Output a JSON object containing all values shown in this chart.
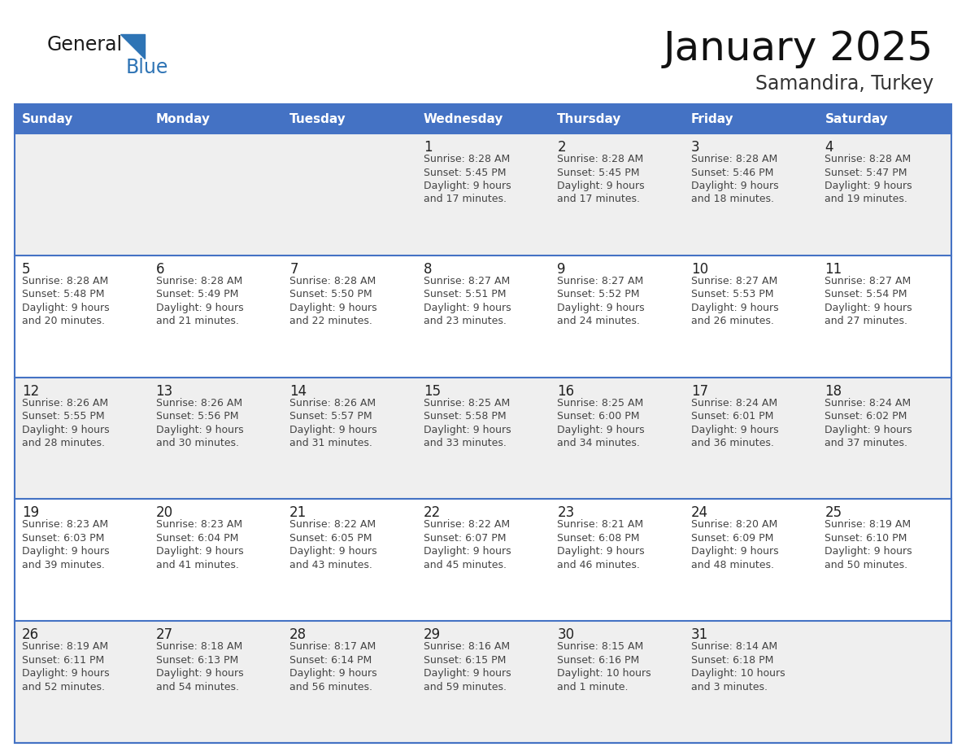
{
  "title": "January 2025",
  "subtitle": "Samandira, Turkey",
  "days_of_week": [
    "Sunday",
    "Monday",
    "Tuesday",
    "Wednesday",
    "Thursday",
    "Friday",
    "Saturday"
  ],
  "header_bg": "#4472C4",
  "header_text_color": "#FFFFFF",
  "row_bg_colors": [
    "#EFEFEF",
    "#FFFFFF",
    "#EFEFEF",
    "#FFFFFF",
    "#EFEFEF"
  ],
  "cell_border_color": "#4472C4",
  "day_number_color": "#222222",
  "text_color": "#444444",
  "logo_general_color": "#1a1a1a",
  "logo_blue_color": "#2E74B5",
  "logo_triangle_color": "#2E74B5",
  "calendar": [
    [
      null,
      null,
      null,
      {
        "day": "1",
        "sunrise": "8:28 AM",
        "sunset": "5:45 PM",
        "daylight": "9 hours",
        "daylight2": "and 17 minutes."
      },
      {
        "day": "2",
        "sunrise": "8:28 AM",
        "sunset": "5:45 PM",
        "daylight": "9 hours",
        "daylight2": "and 17 minutes."
      },
      {
        "day": "3",
        "sunrise": "8:28 AM",
        "sunset": "5:46 PM",
        "daylight": "9 hours",
        "daylight2": "and 18 minutes."
      },
      {
        "day": "4",
        "sunrise": "8:28 AM",
        "sunset": "5:47 PM",
        "daylight": "9 hours",
        "daylight2": "and 19 minutes."
      }
    ],
    [
      {
        "day": "5",
        "sunrise": "8:28 AM",
        "sunset": "5:48 PM",
        "daylight": "9 hours",
        "daylight2": "and 20 minutes."
      },
      {
        "day": "6",
        "sunrise": "8:28 AM",
        "sunset": "5:49 PM",
        "daylight": "9 hours",
        "daylight2": "and 21 minutes."
      },
      {
        "day": "7",
        "sunrise": "8:28 AM",
        "sunset": "5:50 PM",
        "daylight": "9 hours",
        "daylight2": "and 22 minutes."
      },
      {
        "day": "8",
        "sunrise": "8:27 AM",
        "sunset": "5:51 PM",
        "daylight": "9 hours",
        "daylight2": "and 23 minutes."
      },
      {
        "day": "9",
        "sunrise": "8:27 AM",
        "sunset": "5:52 PM",
        "daylight": "9 hours",
        "daylight2": "and 24 minutes."
      },
      {
        "day": "10",
        "sunrise": "8:27 AM",
        "sunset": "5:53 PM",
        "daylight": "9 hours",
        "daylight2": "and 26 minutes."
      },
      {
        "day": "11",
        "sunrise": "8:27 AM",
        "sunset": "5:54 PM",
        "daylight": "9 hours",
        "daylight2": "and 27 minutes."
      }
    ],
    [
      {
        "day": "12",
        "sunrise": "8:26 AM",
        "sunset": "5:55 PM",
        "daylight": "9 hours",
        "daylight2": "and 28 minutes."
      },
      {
        "day": "13",
        "sunrise": "8:26 AM",
        "sunset": "5:56 PM",
        "daylight": "9 hours",
        "daylight2": "and 30 minutes."
      },
      {
        "day": "14",
        "sunrise": "8:26 AM",
        "sunset": "5:57 PM",
        "daylight": "9 hours",
        "daylight2": "and 31 minutes."
      },
      {
        "day": "15",
        "sunrise": "8:25 AM",
        "sunset": "5:58 PM",
        "daylight": "9 hours",
        "daylight2": "and 33 minutes."
      },
      {
        "day": "16",
        "sunrise": "8:25 AM",
        "sunset": "6:00 PM",
        "daylight": "9 hours",
        "daylight2": "and 34 minutes."
      },
      {
        "day": "17",
        "sunrise": "8:24 AM",
        "sunset": "6:01 PM",
        "daylight": "9 hours",
        "daylight2": "and 36 minutes."
      },
      {
        "day": "18",
        "sunrise": "8:24 AM",
        "sunset": "6:02 PM",
        "daylight": "9 hours",
        "daylight2": "and 37 minutes."
      }
    ],
    [
      {
        "day": "19",
        "sunrise": "8:23 AM",
        "sunset": "6:03 PM",
        "daylight": "9 hours",
        "daylight2": "and 39 minutes."
      },
      {
        "day": "20",
        "sunrise": "8:23 AM",
        "sunset": "6:04 PM",
        "daylight": "9 hours",
        "daylight2": "and 41 minutes."
      },
      {
        "day": "21",
        "sunrise": "8:22 AM",
        "sunset": "6:05 PM",
        "daylight": "9 hours",
        "daylight2": "and 43 minutes."
      },
      {
        "day": "22",
        "sunrise": "8:22 AM",
        "sunset": "6:07 PM",
        "daylight": "9 hours",
        "daylight2": "and 45 minutes."
      },
      {
        "day": "23",
        "sunrise": "8:21 AM",
        "sunset": "6:08 PM",
        "daylight": "9 hours",
        "daylight2": "and 46 minutes."
      },
      {
        "day": "24",
        "sunrise": "8:20 AM",
        "sunset": "6:09 PM",
        "daylight": "9 hours",
        "daylight2": "and 48 minutes."
      },
      {
        "day": "25",
        "sunrise": "8:19 AM",
        "sunset": "6:10 PM",
        "daylight": "9 hours",
        "daylight2": "and 50 minutes."
      }
    ],
    [
      {
        "day": "26",
        "sunrise": "8:19 AM",
        "sunset": "6:11 PM",
        "daylight": "9 hours",
        "daylight2": "and 52 minutes."
      },
      {
        "day": "27",
        "sunrise": "8:18 AM",
        "sunset": "6:13 PM",
        "daylight": "9 hours",
        "daylight2": "and 54 minutes."
      },
      {
        "day": "28",
        "sunrise": "8:17 AM",
        "sunset": "6:14 PM",
        "daylight": "9 hours",
        "daylight2": "and 56 minutes."
      },
      {
        "day": "29",
        "sunrise": "8:16 AM",
        "sunset": "6:15 PM",
        "daylight": "9 hours",
        "daylight2": "and 59 minutes."
      },
      {
        "day": "30",
        "sunrise": "8:15 AM",
        "sunset": "6:16 PM",
        "daylight": "10 hours",
        "daylight2": "and 1 minute."
      },
      {
        "day": "31",
        "sunrise": "8:14 AM",
        "sunset": "6:18 PM",
        "daylight": "10 hours",
        "daylight2": "and 3 minutes."
      },
      null
    ]
  ]
}
